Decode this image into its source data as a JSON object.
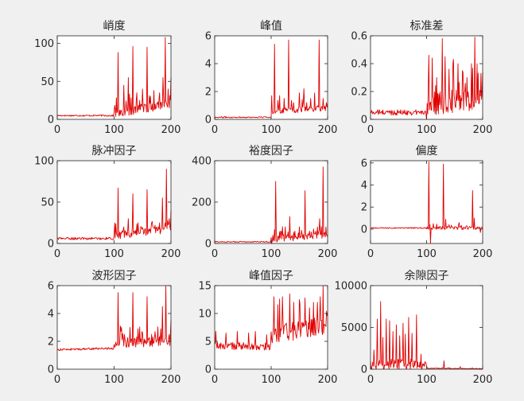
{
  "figure": {
    "background": "#f0f0f0",
    "axes_background": "#ffffff",
    "line_color": "#e00000",
    "axis_color": "#262626"
  },
  "chart_data": [
    {
      "type": "line",
      "title": "峭度",
      "xlim": [
        0,
        200
      ],
      "ylim": [
        0,
        110
      ],
      "xticks": [
        0,
        100,
        200
      ],
      "yticks": [
        0,
        50,
        100
      ],
      "series": [
        {
          "color": "#e00000",
          "trend": [
            [
              0,
              5
            ],
            [
              100,
              5
            ],
            [
              101,
              8
            ],
            [
              200,
              20
            ]
          ],
          "peaks": [
            [
              107,
              88
            ],
            [
              117,
              45
            ],
            [
              125,
              55
            ],
            [
              133,
              96
            ],
            [
              140,
              35
            ],
            [
              145,
              25
            ],
            [
              150,
              40
            ],
            [
              158,
              95
            ],
            [
              164,
              30
            ],
            [
              170,
              38
            ],
            [
              180,
              35
            ],
            [
              186,
              55
            ],
            [
              190,
              108
            ],
            [
              195,
              40
            ],
            [
              200,
              55
            ]
          ],
          "noise_before": 2,
          "noise_after": 12
        }
      ]
    },
    {
      "type": "line",
      "title": "峰值",
      "xlim": [
        0,
        200
      ],
      "ylim": [
        0,
        6
      ],
      "xticks": [
        0,
        100,
        200
      ],
      "yticks": [
        0,
        2,
        4,
        6
      ],
      "series": [
        {
          "color": "#e00000",
          "trend": [
            [
              0,
              0.15
            ],
            [
              100,
              0.15
            ],
            [
              101,
              0.6
            ],
            [
              200,
              0.8
            ]
          ],
          "peaks": [
            [
              101,
              1.7
            ],
            [
              106,
              5.4
            ],
            [
              115,
              1.7
            ],
            [
              123,
              1.5
            ],
            [
              131,
              5.7
            ],
            [
              140,
              1.2
            ],
            [
              150,
              1.9
            ],
            [
              158,
              2.2
            ],
            [
              163,
              1.2
            ],
            [
              170,
              1.5
            ],
            [
              177,
              1.9
            ],
            [
              185,
              5.7
            ],
            [
              192,
              1.5
            ],
            [
              198,
              1.2
            ]
          ],
          "noise_before": 0.1,
          "noise_after": 0.4
        }
      ]
    },
    {
      "type": "line",
      "title": "标准差",
      "xlim": [
        0,
        200
      ],
      "ylim": [
        0,
        0.6
      ],
      "xticks": [
        0,
        100,
        200
      ],
      "yticks": [
        0,
        0.2,
        0.4,
        0.6
      ],
      "series": [
        {
          "color": "#e00000",
          "trend": [
            [
              0,
              0.05
            ],
            [
              100,
              0.05
            ],
            [
              101,
              0.1
            ],
            [
              200,
              0.15
            ]
          ],
          "peaks": [
            [
              104,
              0.46
            ],
            [
              110,
              0.44
            ],
            [
              118,
              0.3
            ],
            [
              128,
              0.58
            ],
            [
              133,
              0.45
            ],
            [
              140,
              0.36
            ],
            [
              148,
              0.43
            ],
            [
              156,
              0.4
            ],
            [
              164,
              0.35
            ],
            [
              172,
              0.3
            ],
            [
              180,
              0.4
            ],
            [
              186,
              0.59
            ],
            [
              190,
              0.4
            ],
            [
              197,
              0.33
            ],
            [
              200,
              0.34
            ]
          ],
          "noise_before": 0.04,
          "noise_after": 0.18
        }
      ]
    },
    {
      "type": "line",
      "title": "脉冲因子",
      "xlim": [
        0,
        200
      ],
      "ylim": [
        0,
        100
      ],
      "xticks": [
        0,
        100,
        200
      ],
      "yticks": [
        0,
        50,
        100
      ],
      "series": [
        {
          "color": "#e00000",
          "trend": [
            [
              0,
              6
            ],
            [
              100,
              6
            ],
            [
              102,
              10
            ],
            [
              200,
              18
            ]
          ],
          "peaks": [
            [
              107,
              67
            ],
            [
              117,
              20
            ],
            [
              125,
              30
            ],
            [
              133,
              60
            ],
            [
              142,
              25
            ],
            [
              148,
              20
            ],
            [
              158,
              65
            ],
            [
              166,
              25
            ],
            [
              172,
              22
            ],
            [
              180,
              25
            ],
            [
              185,
              55
            ],
            [
              192,
              90
            ],
            [
              197,
              30
            ],
            [
              200,
              40
            ]
          ],
          "noise_before": 3,
          "noise_after": 10
        }
      ]
    },
    {
      "type": "line",
      "title": "裕度因子",
      "xlim": [
        0,
        200
      ],
      "ylim": [
        0,
        400
      ],
      "xticks": [
        0,
        100,
        200
      ],
      "yticks": [
        0,
        200,
        400
      ],
      "series": [
        {
          "color": "#e00000",
          "trend": [
            [
              0,
              8
            ],
            [
              100,
              8
            ],
            [
              102,
              20
            ],
            [
              200,
              40
            ]
          ],
          "peaks": [
            [
              108,
              300
            ],
            [
              117,
              60
            ],
            [
              125,
              80
            ],
            [
              133,
              130
            ],
            [
              142,
              60
            ],
            [
              150,
              80
            ],
            [
              160,
              255
            ],
            [
              168,
              60
            ],
            [
              175,
              70
            ],
            [
              182,
              80
            ],
            [
              186,
              120
            ],
            [
              192,
              370
            ],
            [
              197,
              80
            ],
            [
              200,
              30
            ]
          ],
          "noise_before": 5,
          "noise_after": 30
        }
      ]
    },
    {
      "type": "line",
      "title": "偏度",
      "xlim": [
        0,
        200
      ],
      "ylim": [
        -1.3,
        6.2
      ],
      "xticks": [
        0,
        100,
        200
      ],
      "yticks": [
        0,
        2,
        4,
        6
      ],
      "series": [
        {
          "color": "#e00000",
          "trend": [
            [
              0,
              0.1
            ],
            [
              200,
              0.1
            ]
          ],
          "peaks": [
            [
              104,
              6.1
            ],
            [
              107,
              -1.3
            ],
            [
              112,
              0.5
            ],
            [
              130,
              5.9
            ],
            [
              134,
              0.9
            ],
            [
              140,
              0.4
            ],
            [
              158,
              0.6
            ],
            [
              172,
              0.3
            ],
            [
              182,
              3.5
            ],
            [
              185,
              1.0
            ],
            [
              191,
              0.2
            ],
            [
              196,
              -0.3
            ]
          ],
          "noise_before": 0.1,
          "noise_after": 0.3
        }
      ]
    },
    {
      "type": "line",
      "title": "波形因子",
      "xlim": [
        0,
        200
      ],
      "ylim": [
        0,
        6
      ],
      "xticks": [
        0,
        100,
        200
      ],
      "yticks": [
        0,
        2,
        4,
        6
      ],
      "series": [
        {
          "color": "#e00000",
          "trend": [
            [
              0,
              1.4
            ],
            [
              100,
              1.5
            ],
            [
              102,
              1.9
            ],
            [
              200,
              2.0
            ]
          ],
          "peaks": [
            [
              107,
              5.5
            ],
            [
              113,
              3.0
            ],
            [
              118,
              2.5
            ],
            [
              128,
              3.0
            ],
            [
              133,
              5.5
            ],
            [
              142,
              2.9
            ],
            [
              150,
              2.6
            ],
            [
              158,
              5.2
            ],
            [
              166,
              2.5
            ],
            [
              172,
              2.7
            ],
            [
              182,
              2.9
            ],
            [
              185,
              4.5
            ],
            [
              191,
              6.0
            ],
            [
              197,
              2.5
            ],
            [
              200,
              3.5
            ]
          ],
          "noise_before": 0.15,
          "noise_after": 0.7
        }
      ]
    },
    {
      "type": "line",
      "title": "峰值因子",
      "xlim": [
        0,
        200
      ],
      "ylim": [
        0,
        15
      ],
      "xticks": [
        0,
        100,
        200
      ],
      "yticks": [
        0,
        5,
        10,
        15
      ],
      "series": [
        {
          "color": "#e00000",
          "trend": [
            [
              0,
              4.2
            ],
            [
              100,
              4.0
            ],
            [
              101,
              6.0
            ],
            [
              200,
              8.0
            ]
          ],
          "peaks": [
            [
              2,
              6.8
            ],
            [
              20,
              6.5
            ],
            [
              40,
              6.8
            ],
            [
              60,
              6.5
            ],
            [
              72,
              6.8
            ],
            [
              92,
              6.2
            ],
            [
              105,
              13
            ],
            [
              115,
              12.6
            ],
            [
              120,
              13
            ],
            [
              133,
              13.5
            ],
            [
              140,
              12
            ],
            [
              150,
              12.5
            ],
            [
              160,
              12.8
            ],
            [
              168,
              11
            ],
            [
              175,
              12
            ],
            [
              182,
              12
            ],
            [
              187,
              13
            ],
            [
              192,
              15
            ],
            [
              200,
              10
            ]
          ],
          "noise_before": 1.4,
          "noise_after": 3.5
        }
      ]
    },
    {
      "type": "line",
      "title": "余隙因子",
      "xlim": [
        0,
        200
      ],
      "ylim": [
        0,
        10000
      ],
      "xticks": [
        0,
        100,
        200
      ],
      "yticks": [
        0,
        5000,
        10000
      ],
      "series": [
        {
          "color": "#e00000",
          "trend": [
            [
              0,
              600
            ],
            [
              95,
              600
            ],
            [
              100,
              300
            ],
            [
              102,
              100
            ],
            [
              200,
              50
            ]
          ],
          "peaks": [
            [
              6,
              2300
            ],
            [
              12,
              6000
            ],
            [
              18,
              8100
            ],
            [
              22,
              3800
            ],
            [
              28,
              6000
            ],
            [
              34,
              5800
            ],
            [
              40,
              4500
            ],
            [
              46,
              5300
            ],
            [
              52,
              4000
            ],
            [
              58,
              5500
            ],
            [
              62,
              4200
            ],
            [
              68,
              6200
            ],
            [
              74,
              4300
            ],
            [
              82,
              6500
            ],
            [
              90,
              1800
            ],
            [
              131,
              1000
            ],
            [
              160,
              300
            ]
          ],
          "noise_before": 1300,
          "noise_after": 80
        }
      ]
    }
  ]
}
